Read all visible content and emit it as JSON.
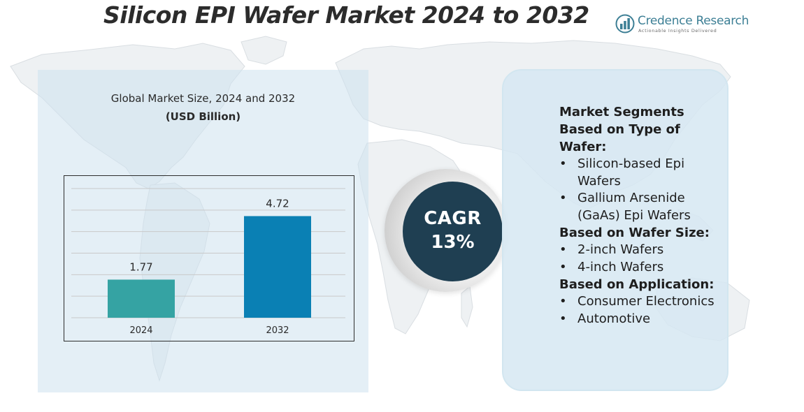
{
  "header": {
    "title": "Silicon EPI Wafer Market 2024 to 2032"
  },
  "brand": {
    "name": "Credence Research",
    "tagline": "Actionable Insights Delivered"
  },
  "chart_panel": {
    "heading": "Global Market Size, 2024 and 2032",
    "unit": "(USD Billion)"
  },
  "chart_data": {
    "type": "bar",
    "title": "Global Market Size, 2024 and 2032",
    "ylabel": "(USD Billion)",
    "categories": [
      "2024",
      "2032"
    ],
    "values": [
      1.77,
      4.72
    ],
    "data_labels": [
      "1.77",
      "4.72"
    ],
    "colors": [
      "#35a3a3",
      "#0a80b4"
    ],
    "ylim": [
      0,
      6
    ],
    "grid": true
  },
  "cagr": {
    "label": "CAGR",
    "value": "13%"
  },
  "segments": {
    "title": "Market Segments",
    "groups": [
      {
        "heading": "Based on Type of Wafer:",
        "items": [
          "Silicon-based Epi Wafers",
          "Gallium Arsenide (GaAs) Epi Wafers"
        ]
      },
      {
        "heading": "Based on Wafer Size:",
        "items": [
          "2-inch Wafers",
          "4-inch Wafers"
        ]
      },
      {
        "heading": "Based on Application:",
        "items": [
          "Consumer Electronics",
          "Automotive"
        ]
      }
    ],
    "bullet": "•"
  },
  "colors": {
    "accent_dark": "#1f3f52",
    "brand": "#3d7f95",
    "panel": "#d6e8f2"
  }
}
